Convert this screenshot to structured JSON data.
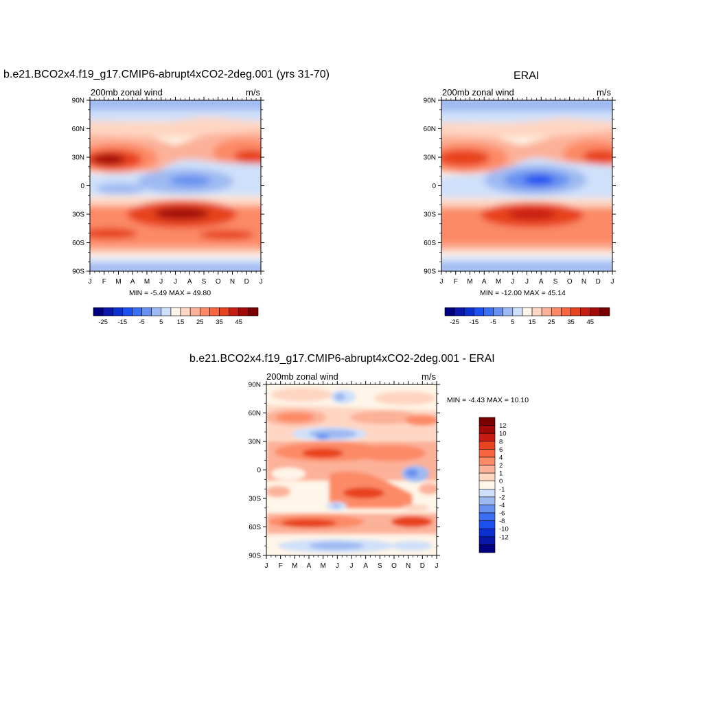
{
  "page": {
    "top_left_title": "b.e21.BCO2x4.f19_g17.CMIP6-abrupt4xCO2-2deg.001 (yrs 31-70)",
    "top_right_title": "ERAI",
    "bottom_title": "b.e21.BCO2x4.f19_g17.CMIP6-abrupt4xCO2-2deg.001 - ERAI"
  },
  "chart_data": [
    {
      "type": "heatmap",
      "id": "model",
      "left_label": "200mb zonal wind",
      "right_label": "m/s",
      "x_tick_labels": [
        "J",
        "F",
        "M",
        "A",
        "M",
        "J",
        "J",
        "A",
        "S",
        "O",
        "N",
        "D",
        "J"
      ],
      "y_tick_labels": [
        "90N",
        "60N",
        "30N",
        "0",
        "30S",
        "60S",
        "90S"
      ],
      "stats": "MIN =  -5.49 MAX =  49.80",
      "colorbar_labels": [
        "-25",
        "-15",
        "-5",
        "5",
        "15",
        "25",
        "35",
        "45"
      ],
      "levels": [
        -30,
        -25,
        -20,
        -15,
        -10,
        -5,
        0,
        5,
        10,
        15,
        20,
        25,
        30,
        35,
        40,
        45,
        50
      ]
    },
    {
      "type": "heatmap",
      "id": "erai",
      "left_label": "200mb zonal wind",
      "right_label": "m/s",
      "x_tick_labels": [
        "J",
        "F",
        "M",
        "A",
        "M",
        "J",
        "J",
        "A",
        "S",
        "O",
        "N",
        "D",
        "J"
      ],
      "y_tick_labels": [
        "90N",
        "60N",
        "30N",
        "0",
        "30S",
        "60S",
        "90S"
      ],
      "stats": "MIN = -12.00 MAX =  45.14",
      "colorbar_labels": [
        "-25",
        "-15",
        "-5",
        "5",
        "15",
        "25",
        "35",
        "45"
      ],
      "levels": [
        -30,
        -25,
        -20,
        -15,
        -10,
        -5,
        0,
        5,
        10,
        15,
        20,
        25,
        30,
        35,
        40,
        45,
        50
      ]
    },
    {
      "type": "heatmap",
      "id": "diff",
      "left_label": "200mb zonal wind",
      "right_label": "m/s",
      "x_tick_labels": [
        "J",
        "F",
        "M",
        "A",
        "M",
        "J",
        "J",
        "A",
        "S",
        "O",
        "N",
        "D",
        "J"
      ],
      "y_tick_labels": [
        "90N",
        "60N",
        "30N",
        "0",
        "30S",
        "60S",
        "90S"
      ],
      "stats": "MIN =  -4.43 MAX =  10.10",
      "colorbar_labels": [
        "12",
        "10",
        "8",
        "6",
        "4",
        "2",
        "1",
        "0",
        "-1",
        "-2",
        "-4",
        "-6",
        "-8",
        "-10",
        "-12"
      ],
      "levels": [
        -14,
        -12,
        -10,
        -8,
        -6,
        -4,
        -2,
        -1,
        0,
        1,
        2,
        4,
        6,
        8,
        10,
        12,
        14
      ]
    }
  ],
  "colors": {
    "palette": [
      "#00007f",
      "#0a17a8",
      "#0c2fd0",
      "#1a4ff0",
      "#3d6ff2",
      "#6791f0",
      "#9fbaf2",
      "#cfe0fa",
      "#fff5e8",
      "#fed6c2",
      "#fcb199",
      "#fc8a66",
      "#f7663e",
      "#e8421e",
      "#c71c12",
      "#a20a07",
      "#7a0000"
    ]
  }
}
